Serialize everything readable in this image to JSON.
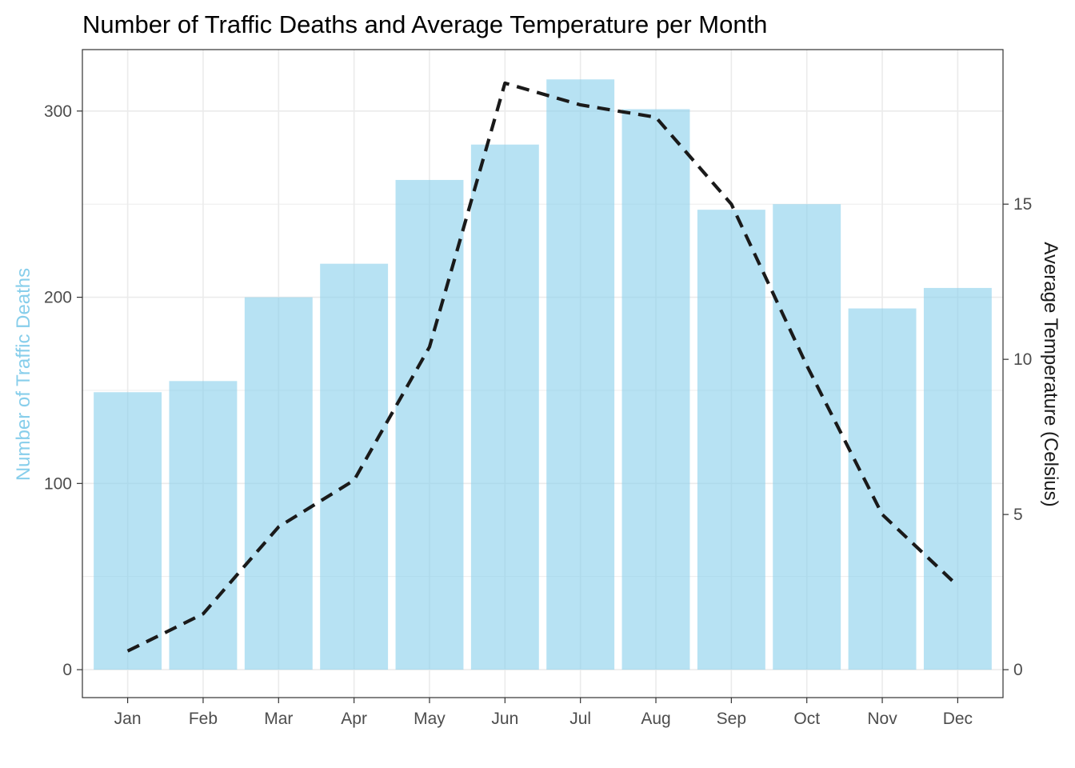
{
  "chart_data": {
    "type": "bar",
    "title": "Number of Traffic Deaths and Average Temperature per Month",
    "categories": [
      "Jan",
      "Feb",
      "Mar",
      "Apr",
      "May",
      "Jun",
      "Jul",
      "Aug",
      "Sep",
      "Oct",
      "Nov",
      "Dec"
    ],
    "series": [
      {
        "type": "bar",
        "axis": "left",
        "values": [
          149,
          155,
          200,
          218,
          263,
          282,
          317,
          301,
          247,
          250,
          194,
          205
        ]
      },
      {
        "type": "line",
        "axis": "right",
        "line_style": "dashed",
        "values": [
          0.6,
          1.8,
          4.6,
          6.1,
          10.4,
          18.9,
          18.2,
          17.8,
          15.0,
          9.8,
          5.0,
          2.7
        ]
      }
    ],
    "ylabel": "Number of Traffic Deaths",
    "ylabel_right": "Average Temperature (Celsius)",
    "ylim": [
      -15,
      333
    ],
    "y_ticks": [
      0,
      100,
      200,
      300
    ],
    "y2lim": [
      -0.9,
      19.98
    ],
    "y2_ticks": [
      0,
      5,
      10,
      15
    ],
    "bar_color": "#87ceeb",
    "bar_opacity": 0.6,
    "line_color": "#1a1a1a",
    "grid": true
  }
}
